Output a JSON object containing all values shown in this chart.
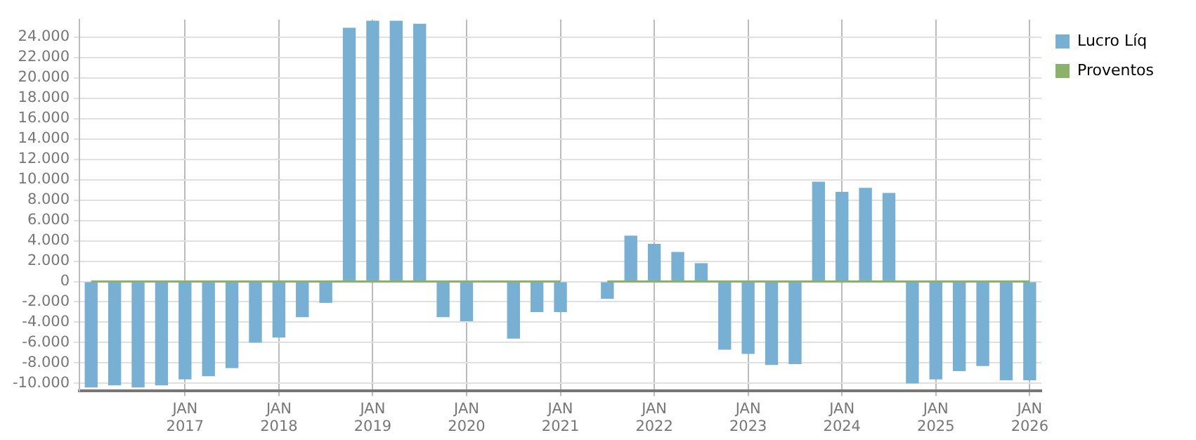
{
  "chart_data": {
    "type": "bar",
    "categories": [
      null,
      null,
      null,
      null,
      "JAN 2017",
      null,
      null,
      null,
      "JAN 2018",
      null,
      null,
      null,
      "JAN 2019",
      null,
      null,
      null,
      "JAN 2020",
      null,
      null,
      null,
      "JAN 2021",
      null,
      null,
      null,
      "JAN 2022",
      null,
      null,
      null,
      "JAN 2023",
      null,
      null,
      null,
      "JAN 2024",
      null,
      null,
      null,
      "JAN 2025",
      null,
      null,
      null,
      "JAN 2026"
    ],
    "series": [
      {
        "name": "Lucro Líq",
        "color": "#78b0d3",
        "values": [
          -10400,
          -10200,
          -10400,
          -10200,
          -9600,
          -9300,
          -8500,
          -6000,
          -5500,
          -3500,
          -2100,
          24900,
          25600,
          25600,
          25300,
          -3500,
          -3900,
          null,
          -5600,
          -3000,
          -3000,
          null,
          -1700,
          4500,
          3700,
          2900,
          1800,
          -6700,
          -7100,
          -8200,
          -8100,
          9800,
          8800,
          9200,
          8700,
          -10000,
          -9600,
          -8800,
          -8300,
          -9700,
          -9700
        ]
      },
      {
        "name": "Proventos",
        "type": "line",
        "color": "#8bb26a",
        "values": [
          0,
          0,
          0,
          0,
          0,
          0,
          0,
          0,
          0,
          0,
          0,
          0,
          0,
          0,
          0,
          0,
          0,
          0,
          0,
          0,
          0,
          null,
          0,
          0,
          0,
          0,
          0,
          0,
          0,
          0,
          0,
          0,
          0,
          0,
          0,
          0,
          0,
          0,
          0,
          0,
          0
        ]
      }
    ],
    "ylim": [
      -10700,
      25700
    ],
    "yticks": [
      {
        "value": -10000,
        "label": "-10.000"
      },
      {
        "value": -8000,
        "label": "-8.000"
      },
      {
        "value": -6000,
        "label": "-6.000"
      },
      {
        "value": -4000,
        "label": "-4.000"
      },
      {
        "value": -2000,
        "label": "-2.000"
      },
      0,
      {
        "value": 2000,
        "label": "2.000"
      },
      {
        "value": 4000,
        "label": "4.000"
      },
      {
        "value": 6000,
        "label": "6.000"
      },
      {
        "value": 8000,
        "label": "8.000"
      },
      {
        "value": 10000,
        "label": "10.000"
      },
      {
        "value": 12000,
        "label": "12.000"
      },
      {
        "value": 14000,
        "label": "14.000"
      },
      {
        "value": 16000,
        "label": "16.000"
      },
      {
        "value": 18000,
        "label": "18.000"
      },
      {
        "value": 20000,
        "label": "20.000"
      },
      {
        "value": 22000,
        "label": "22.000"
      },
      {
        "value": 24000,
        "label": "24.000"
      }
    ],
    "grid": true,
    "legend": "top right",
    "marker": "none"
  }
}
